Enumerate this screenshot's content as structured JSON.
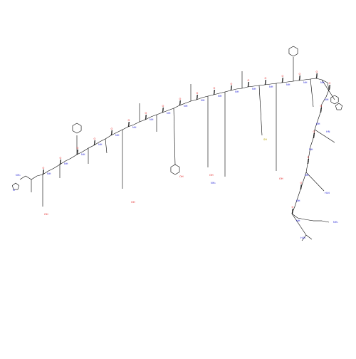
{
  "colors": {
    "bond": "#000000",
    "nitrogen": "#2b2bd6",
    "oxygen": "#e01818",
    "sulfur": "#b8a400",
    "background": "#ffffff"
  },
  "labels": {
    "h2n": "H₂N",
    "nh2": "NH₂",
    "nh": "NH",
    "hn": "HN",
    "o": "O",
    "oh": "OH",
    "ho": "HO",
    "sh": "SH",
    "h": "H",
    "n": "N"
  }
}
